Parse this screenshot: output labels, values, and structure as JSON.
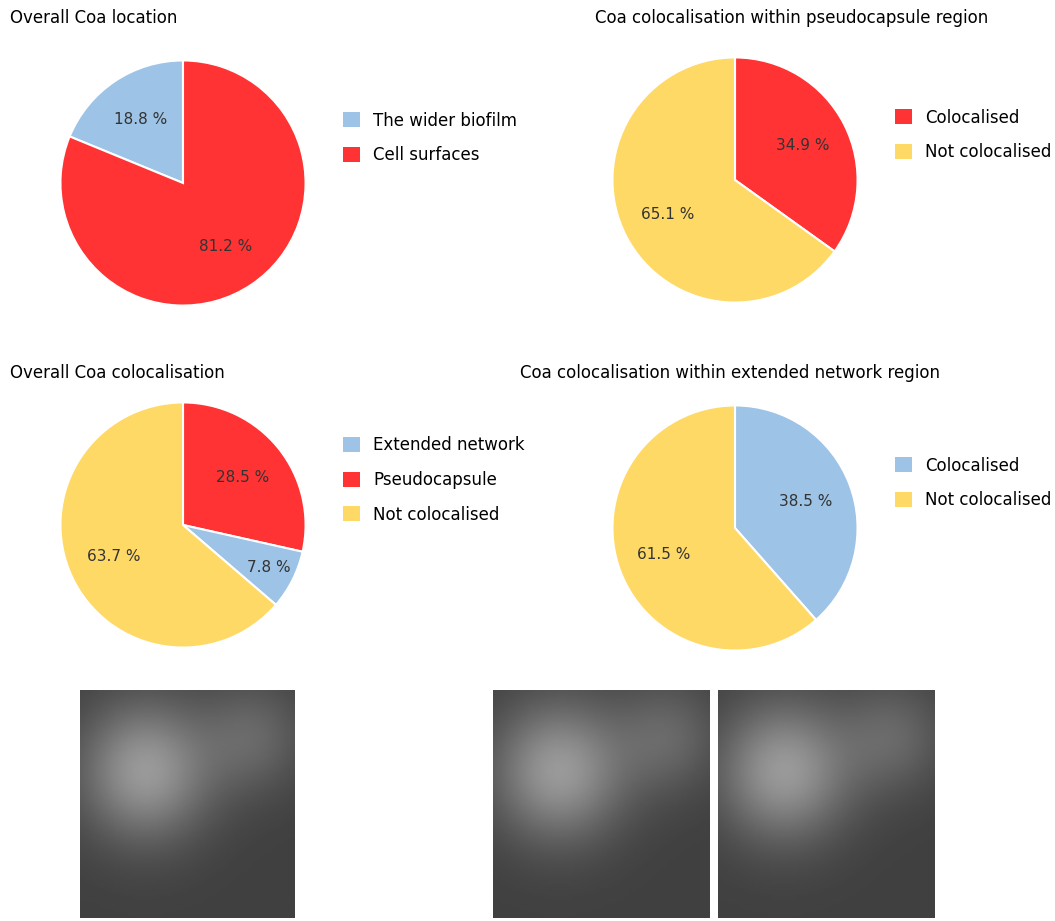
{
  "chart_data": [
    {
      "type": "pie",
      "title": "Overall Coa location",
      "categories": [
        "The wider biofilm",
        "Cell surfaces"
      ],
      "values": [
        18.8,
        81.2
      ],
      "value_labels": [
        "18.8 %",
        "81.2 %"
      ],
      "colors": [
        "#9dc3e6",
        "#ff3333"
      ],
      "data_labels": true,
      "legend": "center left"
    },
    {
      "type": "pie",
      "title": "Coa colocalisation within pseudocapsule region",
      "categories": [
        "Colocalised",
        "Not colocalised"
      ],
      "values": [
        34.9,
        65.1
      ],
      "value_labels": [
        "34.9 %",
        "65.1 %"
      ],
      "colors": [
        "#ff3333",
        "#ffd966"
      ],
      "data_labels": true,
      "legend": "center left"
    },
    {
      "type": "pie",
      "title": "Overall Coa colocalisation",
      "categories": [
        "Extended network",
        "Pseudocapsule",
        "Not colocalised"
      ],
      "values": [
        7.8,
        28.5,
        63.7
      ],
      "value_labels": [
        "7.8 %",
        "28.5 %",
        "63.7 %"
      ],
      "colors": [
        "#9dc3e6",
        "#ff3333",
        "#ffd966"
      ],
      "data_labels": true,
      "legend": "center left"
    },
    {
      "type": "pie",
      "title": "Coa colocalisation within extended network region",
      "categories": [
        "Colocalised",
        "Not colocalised"
      ],
      "values": [
        38.5,
        61.5
      ],
      "value_labels": [
        "38.5 %",
        "61.5 %"
      ],
      "colors": [
        "#9dc3e6",
        "#ffd966"
      ],
      "data_labels": true,
      "legend": "center left"
    }
  ]
}
